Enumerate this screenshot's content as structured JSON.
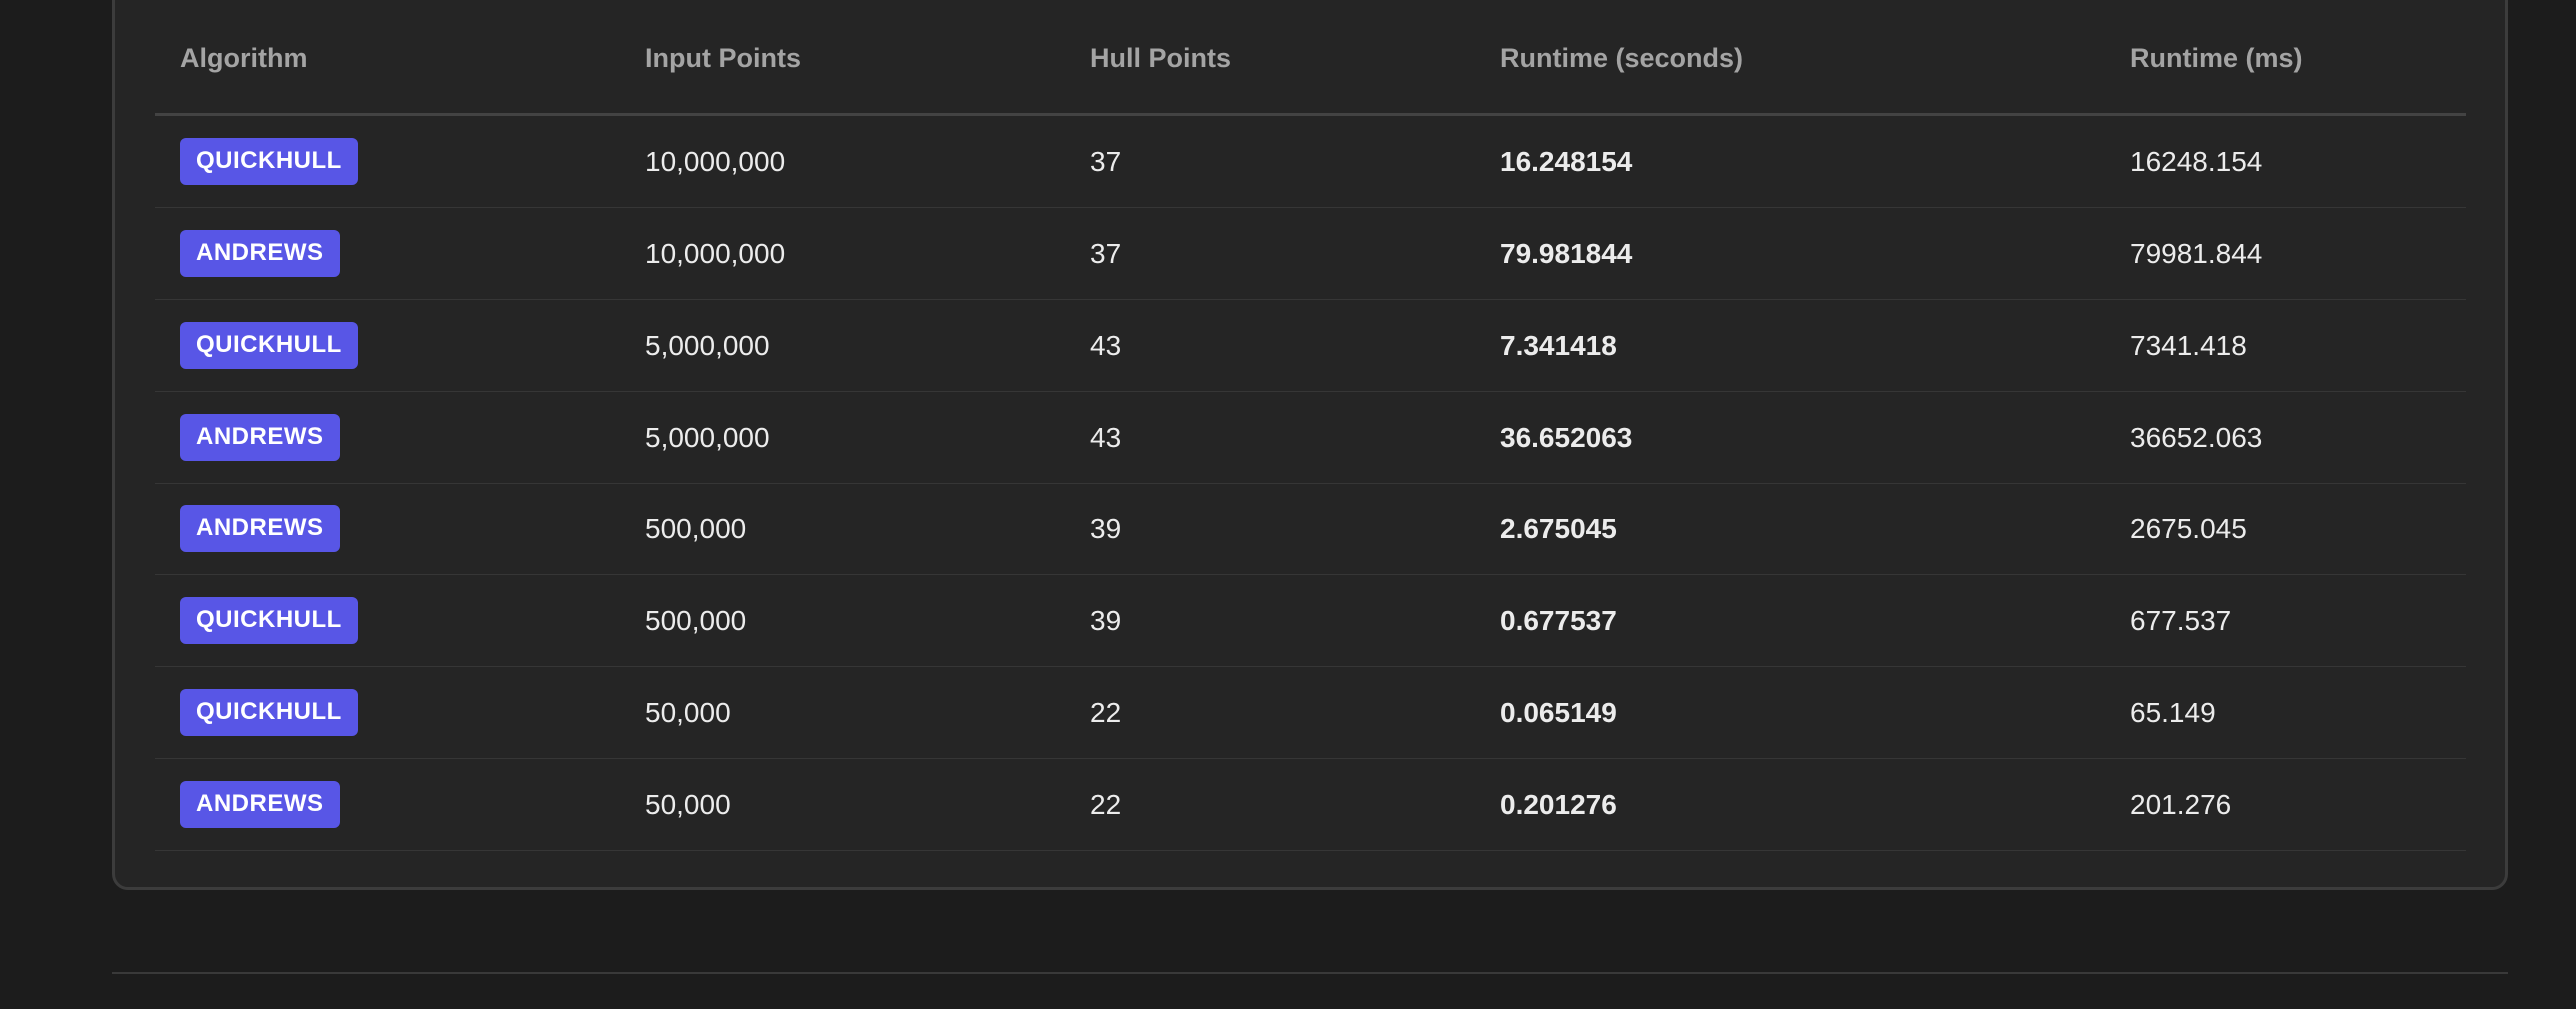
{
  "table": {
    "headers": {
      "algorithm": "Algorithm",
      "input_points": "Input Points",
      "hull_points": "Hull Points",
      "runtime_seconds": "Runtime (seconds)",
      "runtime_ms": "Runtime (ms)"
    },
    "rows": [
      {
        "algorithm": "QUICKHULL",
        "input_points": "10,000,000",
        "hull_points": "37",
        "runtime_seconds": "16.248154",
        "runtime_ms": "16248.154"
      },
      {
        "algorithm": "ANDREWS",
        "input_points": "10,000,000",
        "hull_points": "37",
        "runtime_seconds": "79.981844",
        "runtime_ms": "79981.844"
      },
      {
        "algorithm": "QUICKHULL",
        "input_points": "5,000,000",
        "hull_points": "43",
        "runtime_seconds": "7.341418",
        "runtime_ms": "7341.418"
      },
      {
        "algorithm": "ANDREWS",
        "input_points": "5,000,000",
        "hull_points": "43",
        "runtime_seconds": "36.652063",
        "runtime_ms": "36652.063"
      },
      {
        "algorithm": "ANDREWS",
        "input_points": "500,000",
        "hull_points": "39",
        "runtime_seconds": "2.675045",
        "runtime_ms": "2675.045"
      },
      {
        "algorithm": "QUICKHULL",
        "input_points": "500,000",
        "hull_points": "39",
        "runtime_seconds": "0.677537",
        "runtime_ms": "677.537"
      },
      {
        "algorithm": "QUICKHULL",
        "input_points": "50,000",
        "hull_points": "22",
        "runtime_seconds": "0.065149",
        "runtime_ms": "65.149"
      },
      {
        "algorithm": "ANDREWS",
        "input_points": "50,000",
        "hull_points": "22",
        "runtime_seconds": "0.201276",
        "runtime_ms": "201.276"
      }
    ]
  },
  "colors": {
    "page_background": "#1c1c1c",
    "card_background": "#252525",
    "badge_accent": "#5856e6",
    "runtime_seconds_green": "#4cb860",
    "header_text": "#a4a4a4"
  }
}
